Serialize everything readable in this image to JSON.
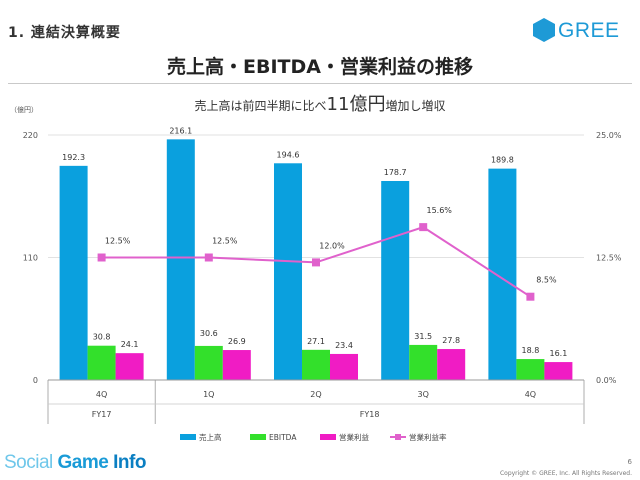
{
  "header": {
    "section_title": "1. 連結決算概要",
    "brand": "GREE",
    "main_title": "売上高・EBITDA・営業利益の推移"
  },
  "chart_data": {
    "type": "bar",
    "subtitle_parts": [
      "売上高は前四半期に比べ",
      "11億円",
      "増加し増収"
    ],
    "unit_label": "（億円）",
    "categories": [
      "4Q",
      "1Q",
      "2Q",
      "3Q",
      "4Q"
    ],
    "group_labels": [
      {
        "label": "FY17",
        "span": [
          0,
          0
        ]
      },
      {
        "label": "FY18",
        "span": [
          1,
          4
        ]
      }
    ],
    "ylim": [
      0,
      220
    ],
    "yticks": [
      "0",
      "110",
      "220"
    ],
    "y2lim": [
      0,
      25
    ],
    "y2ticks": [
      "0.0%",
      "12.5%",
      "25.0%"
    ],
    "series": [
      {
        "name": "売上高",
        "type": "bar",
        "color": "#0aa0de",
        "values": [
          192.3,
          216.1,
          194.6,
          178.7,
          189.8
        ],
        "labels": [
          "192.3",
          "216.1",
          "194.6",
          "178.7",
          "189.8"
        ]
      },
      {
        "name": "EBITDA",
        "type": "bar",
        "color": "#33e02b",
        "values": [
          30.8,
          30.6,
          27.1,
          31.5,
          18.8
        ],
        "labels": [
          "30.8",
          "30.6",
          "27.1",
          "31.5",
          "18.8"
        ]
      },
      {
        "name": "営業利益",
        "type": "bar",
        "color": "#f01cc4",
        "values": [
          24.1,
          26.9,
          23.4,
          27.8,
          16.1
        ],
        "labels": [
          "24.1",
          "26.9",
          "23.4",
          "27.8",
          "16.1"
        ]
      },
      {
        "name": "営業利益率",
        "type": "line",
        "axis": "right",
        "color": "#e061cc",
        "values": [
          12.5,
          12.5,
          12.0,
          15.6,
          8.5
        ],
        "labels": [
          "12.5%",
          "12.5%",
          "12.0%",
          "15.6%",
          "8.5%"
        ]
      }
    ],
    "legend_position": "bottom"
  },
  "footer": {
    "logo_parts": [
      "Social ",
      "Game ",
      "Info"
    ],
    "page_number": "6",
    "copyright": "Copyright © GREE, Inc. All Rights Reserved."
  },
  "colors": {
    "brand_blue": "#1e9ad6",
    "revenue": "#0aa0de",
    "ebitda": "#33e02b",
    "operating_profit": "#f01cc4",
    "margin_line": "#e061cc"
  }
}
